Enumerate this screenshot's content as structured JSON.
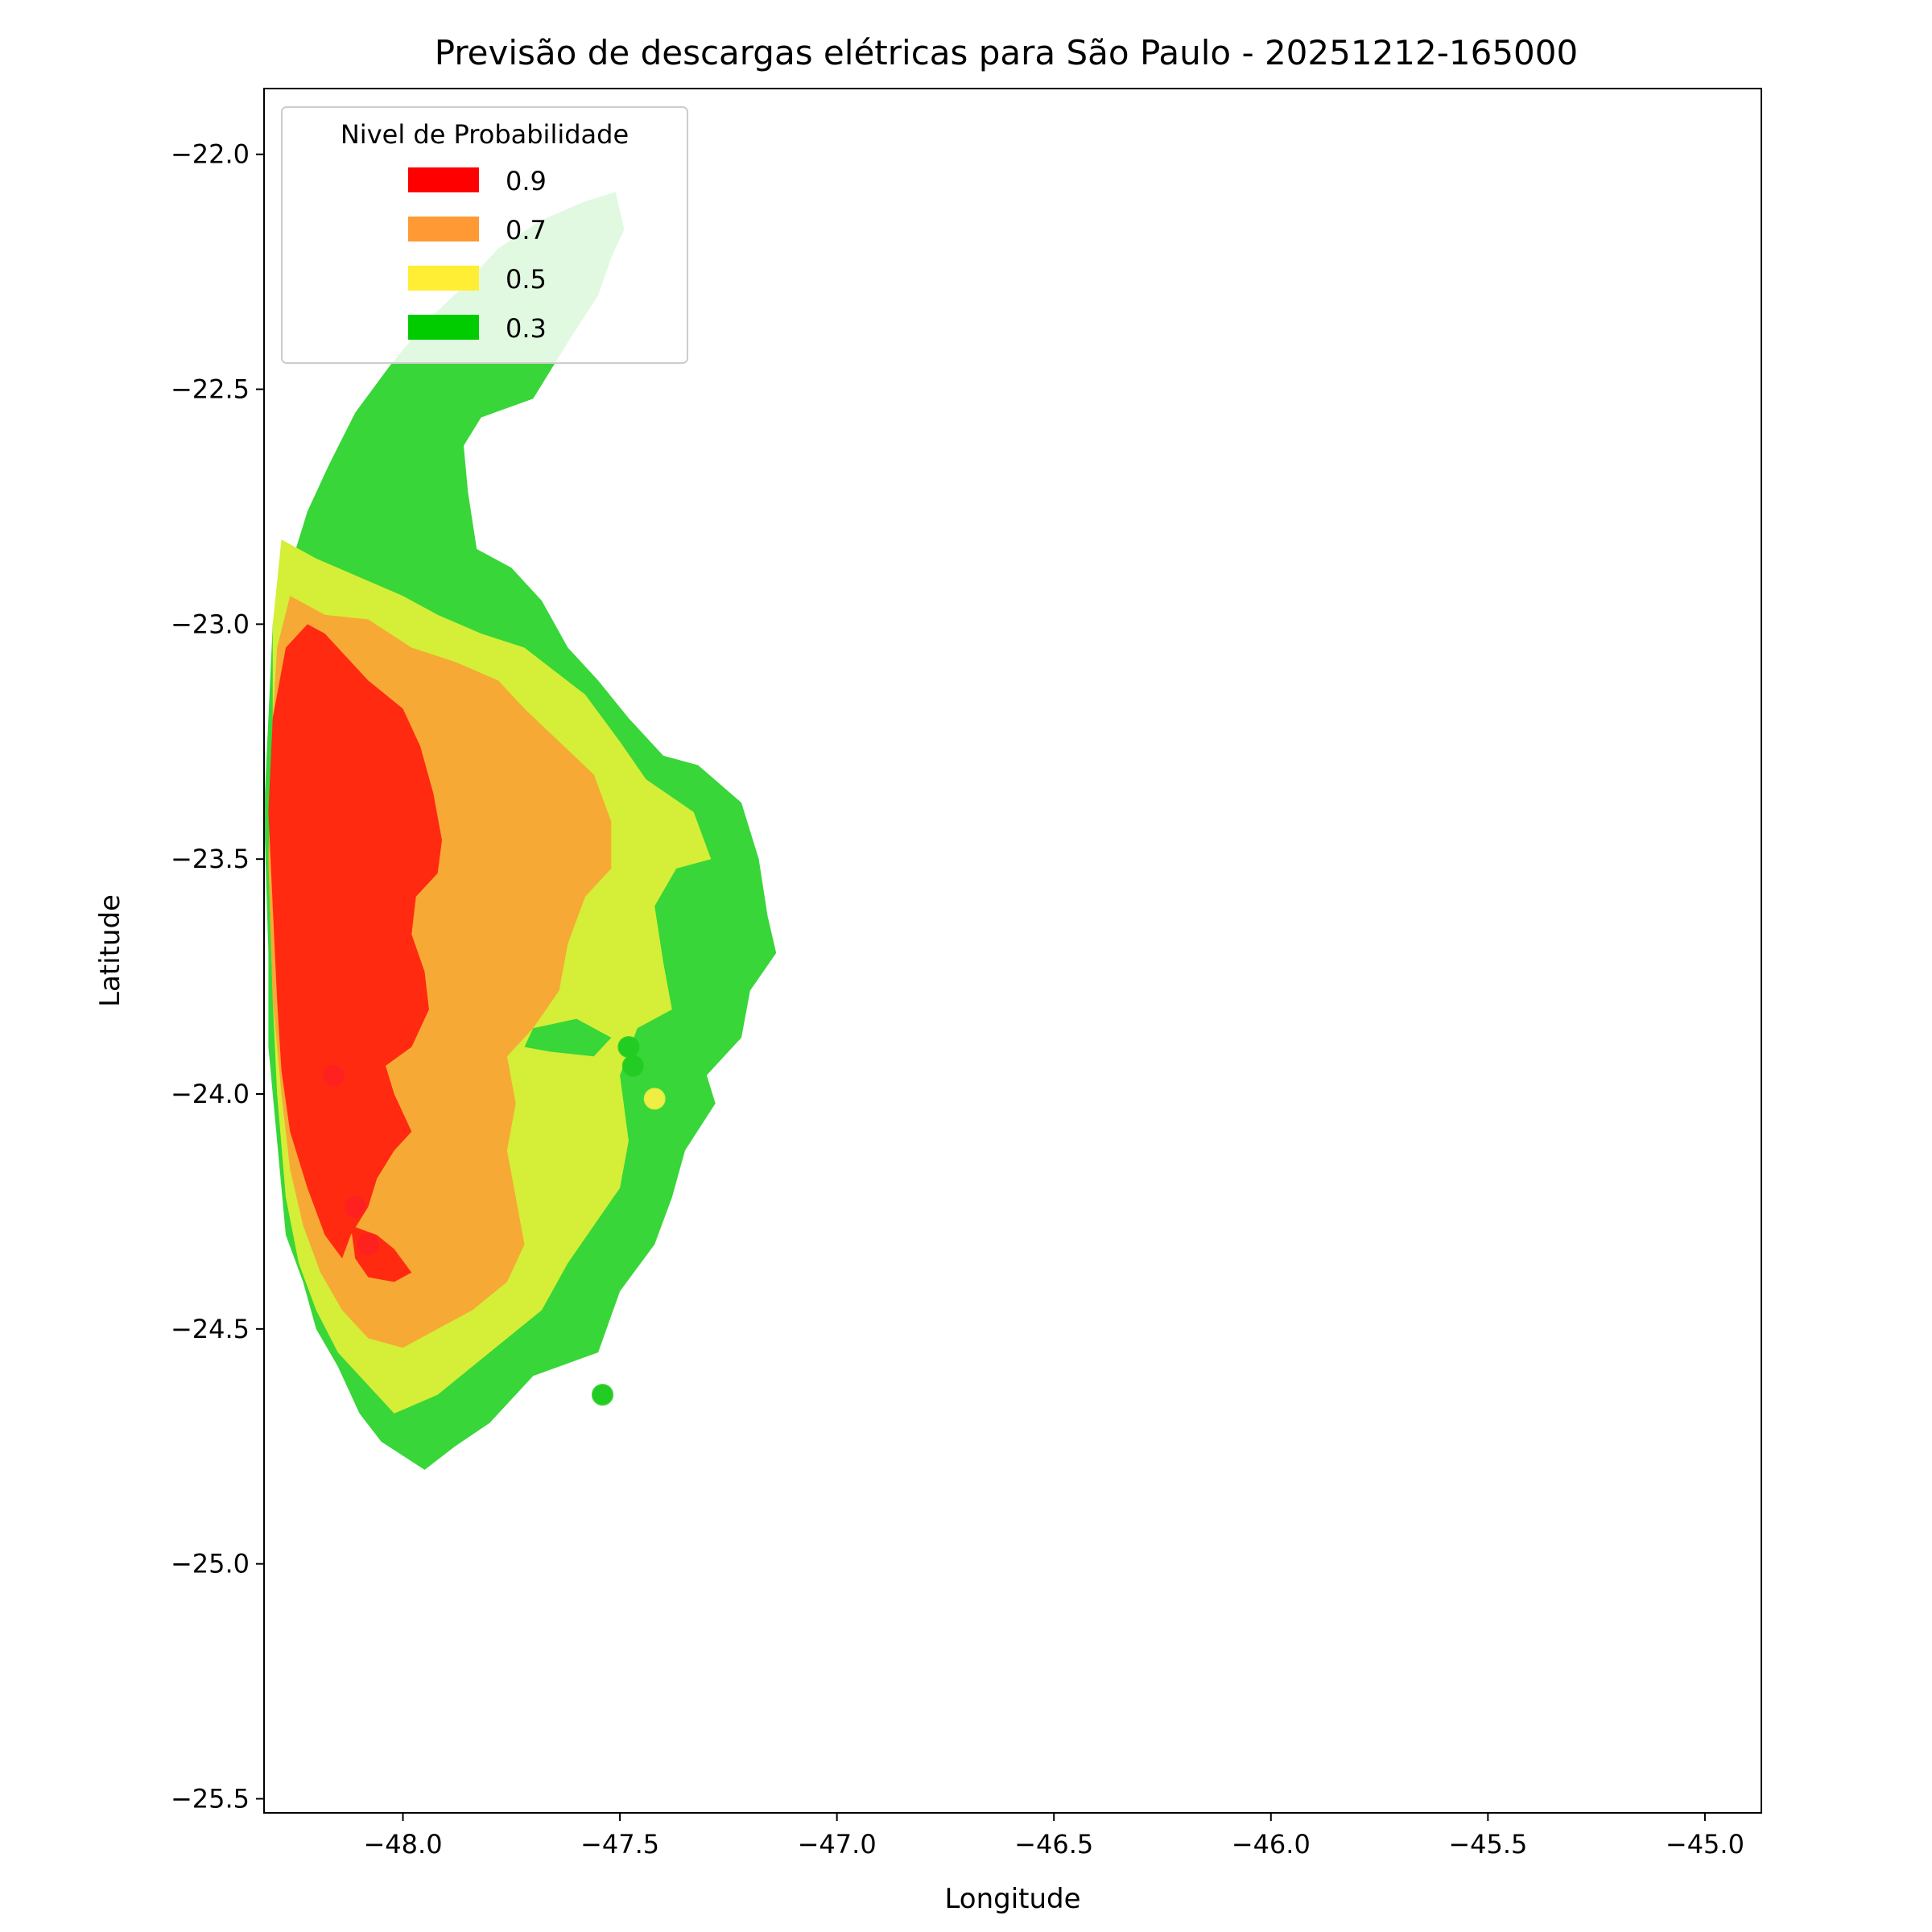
{
  "chart_data": {
    "type": "heatmap",
    "title": "Previsão de descargas elétricas para São Paulo - 20251212-165000",
    "xlabel": "Longitude",
    "ylabel": "Latitude",
    "xlim": [
      -48.32,
      -44.87
    ],
    "ylim": [
      -25.53,
      -21.86
    ],
    "x_ticks": [
      -48.0,
      -47.5,
      -47.0,
      -46.5,
      -46.0,
      -45.5,
      -45.0
    ],
    "x_tick_labels": [
      "−48.0",
      "−47.5",
      "−47.0",
      "−46.5",
      "−46.0",
      "−45.5",
      "−45.0"
    ],
    "y_ticks": [
      -22.0,
      -22.5,
      -23.0,
      -23.5,
      -24.0,
      -24.5,
      -25.0,
      -25.5
    ],
    "y_tick_labels": [
      "−22.0",
      "−22.5",
      "−23.0",
      "−23.5",
      "−24.0",
      "−24.5",
      "−25.0",
      "−25.5"
    ],
    "grid": false,
    "legend": {
      "title": "Nivel de Probabilidade",
      "placement": "top-left",
      "entries": [
        {
          "label": "0.9",
          "color": "#ff0000"
        },
        {
          "label": "0.7",
          "color": "#ff9933"
        },
        {
          "label": "0.5",
          "color": "#ffee33"
        },
        {
          "label": "0.3",
          "color": "#00cc00"
        }
      ]
    },
    "regions": [
      {
        "level": 0.3,
        "color": "#38d638",
        "polygon": [
          [
            -47.51,
            -22.08
          ],
          [
            -47.49,
            -22.16
          ],
          [
            -47.52,
            -22.22
          ],
          [
            -47.55,
            -22.3
          ],
          [
            -47.62,
            -22.4
          ],
          [
            -47.7,
            -22.52
          ],
          [
            -47.82,
            -22.56
          ],
          [
            -47.86,
            -22.62
          ],
          [
            -47.85,
            -22.72
          ],
          [
            -47.83,
            -22.84
          ],
          [
            -47.75,
            -22.88
          ],
          [
            -47.68,
            -22.95
          ],
          [
            -47.62,
            -23.05
          ],
          [
            -47.55,
            -23.12
          ],
          [
            -47.48,
            -23.2
          ],
          [
            -47.4,
            -23.28
          ],
          [
            -47.32,
            -23.3
          ],
          [
            -47.22,
            -23.38
          ],
          [
            -47.18,
            -23.5
          ],
          [
            -47.16,
            -23.62
          ],
          [
            -47.14,
            -23.7
          ],
          [
            -47.2,
            -23.78
          ],
          [
            -47.22,
            -23.88
          ],
          [
            -47.3,
            -23.96
          ],
          [
            -47.28,
            -24.02
          ],
          [
            -47.35,
            -24.12
          ],
          [
            -47.38,
            -24.22
          ],
          [
            -47.42,
            -24.32
          ],
          [
            -47.5,
            -24.42
          ],
          [
            -47.55,
            -24.55
          ],
          [
            -47.7,
            -24.6
          ],
          [
            -47.8,
            -24.7
          ],
          [
            -47.88,
            -24.75
          ],
          [
            -47.95,
            -24.8
          ],
          [
            -48.05,
            -24.74
          ],
          [
            -48.1,
            -24.68
          ],
          [
            -48.15,
            -24.58
          ],
          [
            -48.2,
            -24.5
          ],
          [
            -48.23,
            -24.4
          ],
          [
            -48.27,
            -24.3
          ],
          [
            -48.29,
            -24.1
          ],
          [
            -48.31,
            -23.9
          ],
          [
            -48.31,
            -23.7
          ],
          [
            -48.32,
            -23.4
          ],
          [
            -48.31,
            -23.2
          ],
          [
            -48.3,
            -23.0
          ],
          [
            -48.26,
            -22.88
          ],
          [
            -48.22,
            -22.76
          ],
          [
            -48.17,
            -22.66
          ],
          [
            -48.11,
            -22.55
          ],
          [
            -48.03,
            -22.45
          ],
          [
            -47.95,
            -22.36
          ],
          [
            -47.86,
            -22.28
          ],
          [
            -47.78,
            -22.2
          ],
          [
            -47.68,
            -22.14
          ],
          [
            -47.58,
            -22.1
          ]
        ]
      },
      {
        "level": 0.5,
        "color": "#d5ee38",
        "polygon": [
          [
            -48.28,
            -22.82
          ],
          [
            -48.2,
            -22.86
          ],
          [
            -48.1,
            -22.9
          ],
          [
            -48.0,
            -22.94
          ],
          [
            -47.92,
            -22.98
          ],
          [
            -47.82,
            -23.02
          ],
          [
            -47.72,
            -23.05
          ],
          [
            -47.65,
            -23.1
          ],
          [
            -47.58,
            -23.15
          ],
          [
            -47.5,
            -23.25
          ],
          [
            -47.44,
            -23.33
          ],
          [
            -47.33,
            -23.4
          ],
          [
            -47.29,
            -23.5
          ],
          [
            -47.37,
            -23.52
          ],
          [
            -47.42,
            -23.6
          ],
          [
            -47.4,
            -23.72
          ],
          [
            -47.38,
            -23.82
          ],
          [
            -47.46,
            -23.86
          ],
          [
            -47.5,
            -23.96
          ],
          [
            -47.48,
            -24.1
          ],
          [
            -47.5,
            -24.2
          ],
          [
            -47.56,
            -24.28
          ],
          [
            -47.62,
            -24.36
          ],
          [
            -47.68,
            -24.46
          ],
          [
            -47.76,
            -24.52
          ],
          [
            -47.84,
            -24.58
          ],
          [
            -47.92,
            -24.64
          ],
          [
            -48.02,
            -24.68
          ],
          [
            -48.08,
            -24.62
          ],
          [
            -48.15,
            -24.55
          ],
          [
            -48.2,
            -24.46
          ],
          [
            -48.24,
            -24.36
          ],
          [
            -48.27,
            -24.22
          ],
          [
            -48.29,
            -24.0
          ],
          [
            -48.3,
            -23.8
          ],
          [
            -48.31,
            -23.5
          ],
          [
            -48.3,
            -23.2
          ],
          [
            -48.3,
            -23.0
          ]
        ]
      },
      {
        "level": 0.7,
        "color": "#f7a935",
        "polygon": [
          [
            -48.26,
            -22.94
          ],
          [
            -48.18,
            -22.98
          ],
          [
            -48.08,
            -22.99
          ],
          [
            -47.98,
            -23.05
          ],
          [
            -47.88,
            -23.08
          ],
          [
            -47.78,
            -23.12
          ],
          [
            -47.72,
            -23.18
          ],
          [
            -47.64,
            -23.25
          ],
          [
            -47.56,
            -23.32
          ],
          [
            -47.52,
            -23.42
          ],
          [
            -47.52,
            -23.52
          ],
          [
            -47.58,
            -23.58
          ],
          [
            -47.62,
            -23.68
          ],
          [
            -47.64,
            -23.78
          ],
          [
            -47.7,
            -23.86
          ],
          [
            -47.76,
            -23.92
          ],
          [
            -47.74,
            -24.02
          ],
          [
            -47.76,
            -24.12
          ],
          [
            -47.74,
            -24.22
          ],
          [
            -47.72,
            -24.32
          ],
          [
            -47.76,
            -24.4
          ],
          [
            -47.84,
            -24.46
          ],
          [
            -47.92,
            -24.5
          ],
          [
            -48.0,
            -24.54
          ],
          [
            -48.08,
            -24.52
          ],
          [
            -48.14,
            -24.46
          ],
          [
            -48.19,
            -24.38
          ],
          [
            -48.23,
            -24.28
          ],
          [
            -48.26,
            -24.16
          ],
          [
            -48.28,
            -24.0
          ],
          [
            -48.3,
            -23.8
          ],
          [
            -48.31,
            -23.5
          ],
          [
            -48.3,
            -23.2
          ],
          [
            -48.29,
            -23.05
          ]
        ]
      },
      {
        "level": 0.9,
        "color": "#ff2a10",
        "polygon": [
          [
            -48.22,
            -23.0
          ],
          [
            -48.18,
            -23.02
          ],
          [
            -48.14,
            -23.06
          ],
          [
            -48.08,
            -23.12
          ],
          [
            -48.04,
            -23.15
          ],
          [
            -48.0,
            -23.18
          ],
          [
            -47.96,
            -23.26
          ],
          [
            -47.93,
            -23.36
          ],
          [
            -47.91,
            -23.46
          ],
          [
            -47.92,
            -23.53
          ],
          [
            -47.97,
            -23.58
          ],
          [
            -47.98,
            -23.66
          ],
          [
            -47.95,
            -23.74
          ],
          [
            -47.94,
            -23.82
          ],
          [
            -47.98,
            -23.9
          ],
          [
            -48.04,
            -23.94
          ],
          [
            -48.02,
            -24.0
          ],
          [
            -47.98,
            -24.08
          ],
          [
            -48.02,
            -24.12
          ],
          [
            -48.06,
            -24.18
          ],
          [
            -48.08,
            -24.24
          ],
          [
            -48.12,
            -24.3
          ],
          [
            -48.14,
            -24.35
          ],
          [
            -48.18,
            -24.3
          ],
          [
            -48.22,
            -24.2
          ],
          [
            -48.26,
            -24.08
          ],
          [
            -48.28,
            -23.95
          ],
          [
            -48.29,
            -23.8
          ],
          [
            -48.3,
            -23.6
          ],
          [
            -48.31,
            -23.4
          ],
          [
            -48.3,
            -23.2
          ],
          [
            -48.27,
            -23.05
          ]
        ]
      },
      {
        "level": 0.9,
        "color": "#ff2a10",
        "polygon": [
          [
            -48.12,
            -24.28
          ],
          [
            -48.06,
            -24.3
          ],
          [
            -48.02,
            -24.33
          ],
          [
            -47.98,
            -24.38
          ],
          [
            -48.02,
            -24.4
          ],
          [
            -48.08,
            -24.39
          ],
          [
            -48.11,
            -24.35
          ]
        ]
      },
      {
        "level": 0.3,
        "color": "#38d638",
        "polygon": [
          [
            -47.7,
            -23.86
          ],
          [
            -47.6,
            -23.84
          ],
          [
            -47.52,
            -23.88
          ],
          [
            -47.56,
            -23.92
          ],
          [
            -47.66,
            -23.91
          ],
          [
            -47.72,
            -23.9
          ]
        ]
      }
    ],
    "points": [
      {
        "lon": -48.16,
        "lat": -23.96,
        "level": 0.9,
        "color": "#ff2020"
      },
      {
        "lon": -48.11,
        "lat": -24.24,
        "level": 0.9,
        "color": "#ff2020"
      },
      {
        "lon": -48.08,
        "lat": -24.32,
        "level": 0.9,
        "color": "#ff2020"
      },
      {
        "lon": -47.48,
        "lat": -23.9,
        "level": 0.3,
        "color": "#22cc22"
      },
      {
        "lon": -47.47,
        "lat": -23.94,
        "level": 0.3,
        "color": "#22cc22"
      },
      {
        "lon": -47.42,
        "lat": -24.01,
        "level": 0.5,
        "color": "#eeee44"
      },
      {
        "lon": -47.54,
        "lat": -24.64,
        "level": 0.3,
        "color": "#22cc22"
      }
    ]
  }
}
